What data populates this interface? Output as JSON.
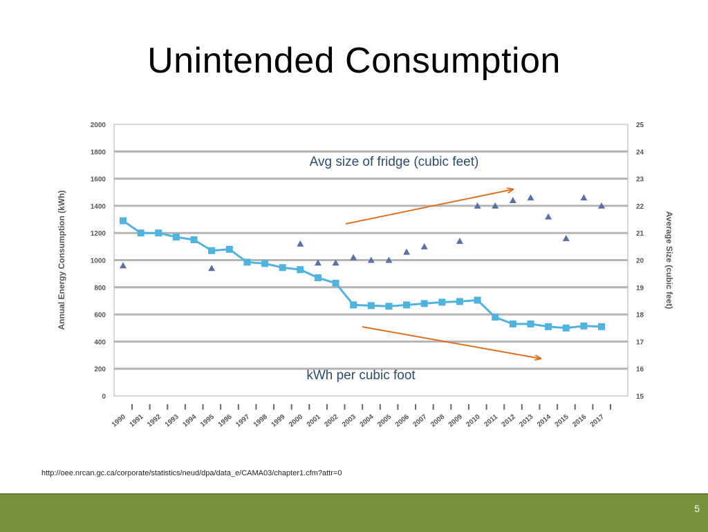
{
  "slide": {
    "title": "Unintended Consumption",
    "source": "http://oee.nrcan.gc.ca/corporate/statistics/neud/dpa/data_e/CAMA03/chapter1.cfm?attr=0",
    "page_number": "5"
  },
  "colors": {
    "consumption_series": "#4fb3e0",
    "size_series": "#5b6fa8",
    "trend_arrow": "#e07020",
    "annotation_text": "#2d4b6e",
    "footer": "#77933c"
  },
  "chart_data": {
    "type": "line",
    "title": "",
    "ylabel": "Annual Energy Consumption (kWh)",
    "y2label": "Average Size (cubic feet)",
    "categories": [
      "1990",
      "1991",
      "1992",
      "1993",
      "1994",
      "1995",
      "1996",
      "1997",
      "1998",
      "1999",
      "2000",
      "2001",
      "2002",
      "2003",
      "2004",
      "2005",
      "2006",
      "2007",
      "2008",
      "2009",
      "2010",
      "2011",
      "2012",
      "2013",
      "2014",
      "2015",
      "2016",
      "2017"
    ],
    "ylim": [
      0,
      2000
    ],
    "yticks": [
      0,
      200,
      400,
      600,
      800,
      1000,
      1200,
      1400,
      1600,
      1800,
      2000
    ],
    "y2lim": [
      15,
      25
    ],
    "y2ticks": [
      15,
      16,
      17,
      18,
      19,
      20,
      21,
      22,
      23,
      24,
      25
    ],
    "series": [
      {
        "name": "Annual Energy Consumption (kWh)",
        "axis": "left",
        "marker": "square",
        "values": [
          1290,
          1200,
          1200,
          1170,
          1150,
          1070,
          1080,
          985,
          975,
          945,
          930,
          870,
          830,
          670,
          665,
          660,
          670,
          680,
          690,
          695,
          705,
          580,
          530,
          530,
          510,
          500,
          515,
          510
        ]
      },
      {
        "name": "Average Size (cubic feet)",
        "axis": "right",
        "marker": "triangle",
        "values": [
          19.8,
          null,
          null,
          null,
          null,
          19.7,
          null,
          null,
          null,
          null,
          20.6,
          19.9,
          19.9,
          20.1,
          20.0,
          20.0,
          20.3,
          20.5,
          null,
          20.7,
          22.0,
          22.0,
          22.2,
          22.3,
          21.6,
          20.8,
          22.3,
          22.0
        ]
      }
    ],
    "annotations": [
      {
        "text": "Avg size of fridge (cubic feet)",
        "trend": "increasing"
      },
      {
        "text": "kWh per cubic foot",
        "trend": "decreasing"
      }
    ]
  }
}
